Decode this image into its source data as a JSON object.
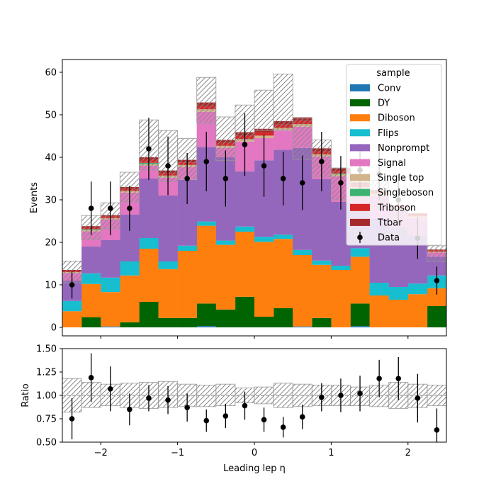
{
  "chart_data": [
    {
      "type": "stacked-histogram",
      "panel": "main",
      "ylabel": "Events",
      "xlim": [
        -2.5,
        2.5
      ],
      "ylim": [
        -2,
        63
      ],
      "yticks": [
        0,
        10,
        20,
        30,
        40,
        50,
        60
      ],
      "x_bin_edges": [
        -2.5,
        -2.25,
        -2.0,
        -1.75,
        -1.5,
        -1.25,
        -1.0,
        -0.75,
        -0.5,
        -0.25,
        0.0,
        0.25,
        0.5,
        0.75,
        1.0,
        1.25,
        1.5,
        1.75,
        2.0,
        2.25,
        2.5
      ],
      "legend": {
        "title": "sample",
        "placement": "upper right"
      },
      "series": [
        {
          "name": "Conv",
          "color": "#1f77b4",
          "values": [
            0,
            0,
            0.2,
            0,
            0,
            0,
            0,
            0.3,
            0,
            0,
            0,
            0,
            0.2,
            0,
            0,
            0.3,
            0,
            0,
            0,
            0
          ]
        },
        {
          "name": "DY",
          "color": "#006400",
          "values": [
            0,
            2.4,
            0,
            1.2,
            6.0,
            2.2,
            2.2,
            5.3,
            4.2,
            7.2,
            2.5,
            4.5,
            0,
            2.2,
            0,
            5.3,
            0,
            0,
            0,
            5.0
          ]
        },
        {
          "name": "Diboson",
          "color": "#ff7f0e",
          "values": [
            3.8,
            7.8,
            8.1,
            11.0,
            12.5,
            11.5,
            15.8,
            18.3,
            15.2,
            15.3,
            17.6,
            16.3,
            16.8,
            12.5,
            13.5,
            11.0,
            7.5,
            6.5,
            7.8,
            4.2
          ]
        },
        {
          "name": "Flips",
          "color": "#17becf",
          "values": [
            2.4,
            2.5,
            3.4,
            3.3,
            2.5,
            1.8,
            1.2,
            1.0,
            1.0,
            1.2,
            1.2,
            1.0,
            1.2,
            1.0,
            1.0,
            2.0,
            3.0,
            3.0,
            2.5,
            3.0
          ]
        },
        {
          "name": "Nonprompt",
          "color": "#9467bd",
          "values": [
            4.8,
            6.3,
            8.8,
            11.0,
            14.0,
            15.5,
            15.5,
            17.5,
            19.6,
            13.0,
            18.0,
            20.0,
            24.0,
            19.2,
            15.0,
            9.5,
            15.0,
            14.0,
            11.3,
            4.4
          ]
        },
        {
          "name": "Signal",
          "color": "#e377c2",
          "values": [
            1.8,
            3.6,
            4.9,
            5.2,
            3.0,
            4.2,
            3.0,
            8.3,
            2.2,
            7.0,
            5.2,
            4.5,
            5.0,
            5.3,
            6.0,
            4.5,
            5.5,
            4.2,
            4.2,
            1.0
          ]
        },
        {
          "name": "Single top",
          "color": "#d2b48c",
          "values": [
            0.2,
            0.3,
            0.3,
            0.4,
            0.4,
            0.5,
            0.5,
            0.6,
            0.5,
            0.6,
            0.6,
            0.6,
            0.6,
            0.5,
            0.5,
            0.4,
            0.4,
            0.3,
            0.3,
            0.2
          ]
        },
        {
          "name": "Singleboson",
          "color": "#3cb371",
          "values": [
            0,
            0.2,
            0,
            0,
            0.3,
            0,
            0,
            0,
            0,
            0,
            0,
            0,
            0,
            0,
            0.2,
            0,
            0,
            0,
            0,
            0
          ]
        },
        {
          "name": "Triboson",
          "color": "#d62728",
          "values": [
            0.3,
            0.4,
            0.4,
            0.5,
            0.7,
            0.6,
            0.6,
            0.8,
            0.7,
            0.8,
            0.8,
            0.8,
            0.8,
            0.7,
            0.6,
            0.6,
            0.5,
            0.4,
            0.4,
            0.3
          ]
        },
        {
          "name": "Ttbar",
          "color": "#a52a2a",
          "values": [
            0.2,
            0.3,
            0.3,
            0.4,
            0.6,
            0.6,
            0.6,
            0.8,
            0.7,
            0.8,
            0.8,
            0.8,
            0.8,
            0.7,
            0.6,
            0.5,
            0.4,
            0.3,
            0.3,
            0.2
          ]
        }
      ],
      "uncertainty_band": {
        "up": [
          15.6,
          26.3,
          29.3,
          36.5,
          48.8,
          46.3,
          44.4,
          58.8,
          49.5,
          52.3,
          55.8,
          59.6,
          49.2,
          44.1,
          37.5,
          32.9,
          34.6,
          28.2,
          24.8,
          19.2
        ],
        "down": [
          10.5,
          20.6,
          23.2,
          29.5,
          37.0,
          34.3,
          34.8,
          48.0,
          39.2,
          44.1,
          46.3,
          46.4,
          39.5,
          35.5,
          30.0,
          27.0,
          28.0,
          21.5,
          20.0,
          15.5
        ]
      },
      "data": {
        "name": "Data",
        "color": "#000000",
        "x": [
          -2.375,
          -2.125,
          -1.875,
          -1.625,
          -1.375,
          -1.125,
          -0.875,
          -0.625,
          -0.375,
          -0.125,
          0.125,
          0.375,
          0.625,
          0.875,
          1.125,
          1.375,
          1.625,
          1.875,
          2.125,
          2.375
        ],
        "y": [
          10,
          28,
          28,
          28,
          42,
          38,
          35,
          39,
          35,
          43,
          38,
          35,
          34,
          39,
          34,
          37,
          36,
          30,
          21,
          11
        ],
        "err": [
          3.2,
          6.3,
          6.3,
          5.3,
          7.3,
          6.9,
          6.0,
          7.0,
          6.6,
          7.4,
          7.3,
          6.3,
          6.4,
          7.0,
          6.3,
          6.2,
          6.0,
          5.8,
          4.9,
          3.3
        ]
      }
    },
    {
      "type": "ratio",
      "panel": "ratio",
      "xlabel": "Leading lep η",
      "ylabel": "Ratio",
      "xlim": [
        -2.5,
        2.5
      ],
      "ylim": [
        0.5,
        1.5
      ],
      "xticks": [
        -2,
        -1,
        0,
        1,
        2
      ],
      "xtick_labels": [
        "−2",
        "−1",
        "0",
        "1",
        "2"
      ],
      "yticks": [
        0.5,
        0.75,
        1.0,
        1.25,
        1.5
      ],
      "ytick_labels": [
        "0.50",
        "0.75",
        "1.00",
        "1.25",
        "1.50"
      ],
      "reference_line": 1.0,
      "uncertainty_band": {
        "up": [
          1.18,
          1.14,
          1.12,
          1.13,
          1.14,
          1.15,
          1.12,
          1.11,
          1.12,
          1.08,
          1.09,
          1.13,
          1.12,
          1.11,
          1.11,
          1.09,
          1.11,
          1.14,
          1.12,
          1.11
        ],
        "down": [
          0.82,
          0.87,
          0.89,
          0.87,
          0.86,
          0.87,
          0.88,
          0.88,
          0.89,
          0.92,
          0.91,
          0.87,
          0.88,
          0.89,
          0.89,
          0.89,
          0.88,
          0.86,
          0.87,
          0.89
        ]
      },
      "points": {
        "x": [
          -2.375,
          -2.125,
          -1.875,
          -1.625,
          -1.375,
          -1.125,
          -0.875,
          -0.625,
          -0.375,
          -0.125,
          0.125,
          0.375,
          0.625,
          0.875,
          1.125,
          1.375,
          1.625,
          1.875,
          2.125,
          2.375
        ],
        "y": [
          0.75,
          1.19,
          1.07,
          0.85,
          0.97,
          0.95,
          0.87,
          0.73,
          0.78,
          0.89,
          0.74,
          0.66,
          0.77,
          0.98,
          1.0,
          1.02,
          1.18,
          1.18,
          0.97,
          0.63
        ],
        "err": [
          0.22,
          0.26,
          0.24,
          0.17,
          0.14,
          0.15,
          0.15,
          0.12,
          0.13,
          0.15,
          0.13,
          0.11,
          0.13,
          0.15,
          0.18,
          0.19,
          0.2,
          0.23,
          0.26,
          0.23
        ]
      }
    }
  ]
}
